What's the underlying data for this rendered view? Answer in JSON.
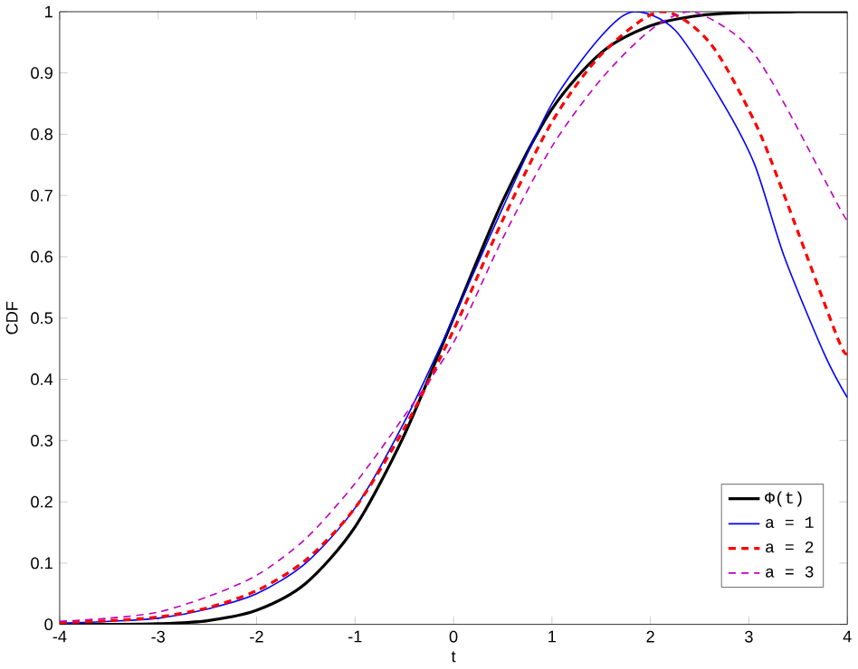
{
  "chart_data": {
    "type": "line",
    "xlabel": "t",
    "ylabel": "CDF",
    "xlim": [
      -4,
      4
    ],
    "ylim": [
      0,
      1
    ],
    "xticks": [
      -4,
      -3,
      -2,
      -1,
      0,
      1,
      2,
      3,
      4
    ],
    "yticks": [
      0,
      0.1,
      0.2,
      0.3,
      0.4,
      0.5,
      0.6,
      0.7,
      0.8,
      0.9,
      1
    ],
    "grid": false,
    "legend": "bottom right",
    "marker": "none",
    "series": [
      {
        "name": "Φ(t)",
        "color": "#000000",
        "line_style": "solid",
        "x": [
          -4,
          -3.5,
          -3,
          -2.5,
          -2,
          -1.5,
          -1,
          -0.5,
          0,
          0.5,
          1,
          1.5,
          2,
          2.5,
          3,
          3.5,
          4
        ],
        "values": [
          0,
          0,
          0.001,
          0.006,
          0.023,
          0.067,
          0.159,
          0.309,
          0.5,
          0.691,
          0.841,
          0.933,
          0.977,
          0.994,
          0.999,
          1,
          1
        ]
      },
      {
        "name": "a = 1",
        "color": "#0000ff",
        "line_style": "solid",
        "x": [
          -4,
          -3.5,
          -3,
          -2.5,
          -2,
          -1.5,
          -1,
          -0.5,
          0,
          0.5,
          1,
          1.5,
          1.83,
          2.25,
          2.74,
          3.06,
          3.36,
          3.77,
          4
        ],
        "values": [
          0.002,
          0.005,
          0.01,
          0.025,
          0.05,
          0.1,
          0.19,
          0.33,
          0.5,
          0.68,
          0.85,
          0.96,
          1,
          0.97,
          0.85,
          0.75,
          0.6,
          0.44,
          0.37
        ]
      },
      {
        "name": "a = 2",
        "color": "#ff0000",
        "line_style": "dashed",
        "x": [
          -4,
          -3.5,
          -3,
          -2.5,
          -2,
          -1.5,
          -1,
          -0.5,
          0,
          0.5,
          1,
          1.5,
          2.1,
          2.6,
          3.06,
          3.36,
          3.92,
          4
        ],
        "values": [
          0.003,
          0.006,
          0.012,
          0.027,
          0.055,
          0.105,
          0.19,
          0.32,
          0.48,
          0.66,
          0.82,
          0.93,
          1,
          0.95,
          0.82,
          0.7,
          0.46,
          0.45
        ]
      },
      {
        "name": "a = 3",
        "color": "#bf00bf",
        "line_style": "dashed",
        "x": [
          -4,
          -3.5,
          -3,
          -2.5,
          -2,
          -1.5,
          -1,
          -0.5,
          0,
          0.5,
          1,
          1.5,
          2,
          2.4,
          2.8,
          3.06,
          3.36,
          3.92,
          4
        ],
        "values": [
          0.005,
          0.01,
          0.02,
          0.045,
          0.08,
          0.14,
          0.23,
          0.34,
          0.46,
          0.63,
          0.78,
          0.89,
          0.97,
          1,
          0.97,
          0.93,
          0.85,
          0.68,
          0.66
        ]
      }
    ]
  }
}
